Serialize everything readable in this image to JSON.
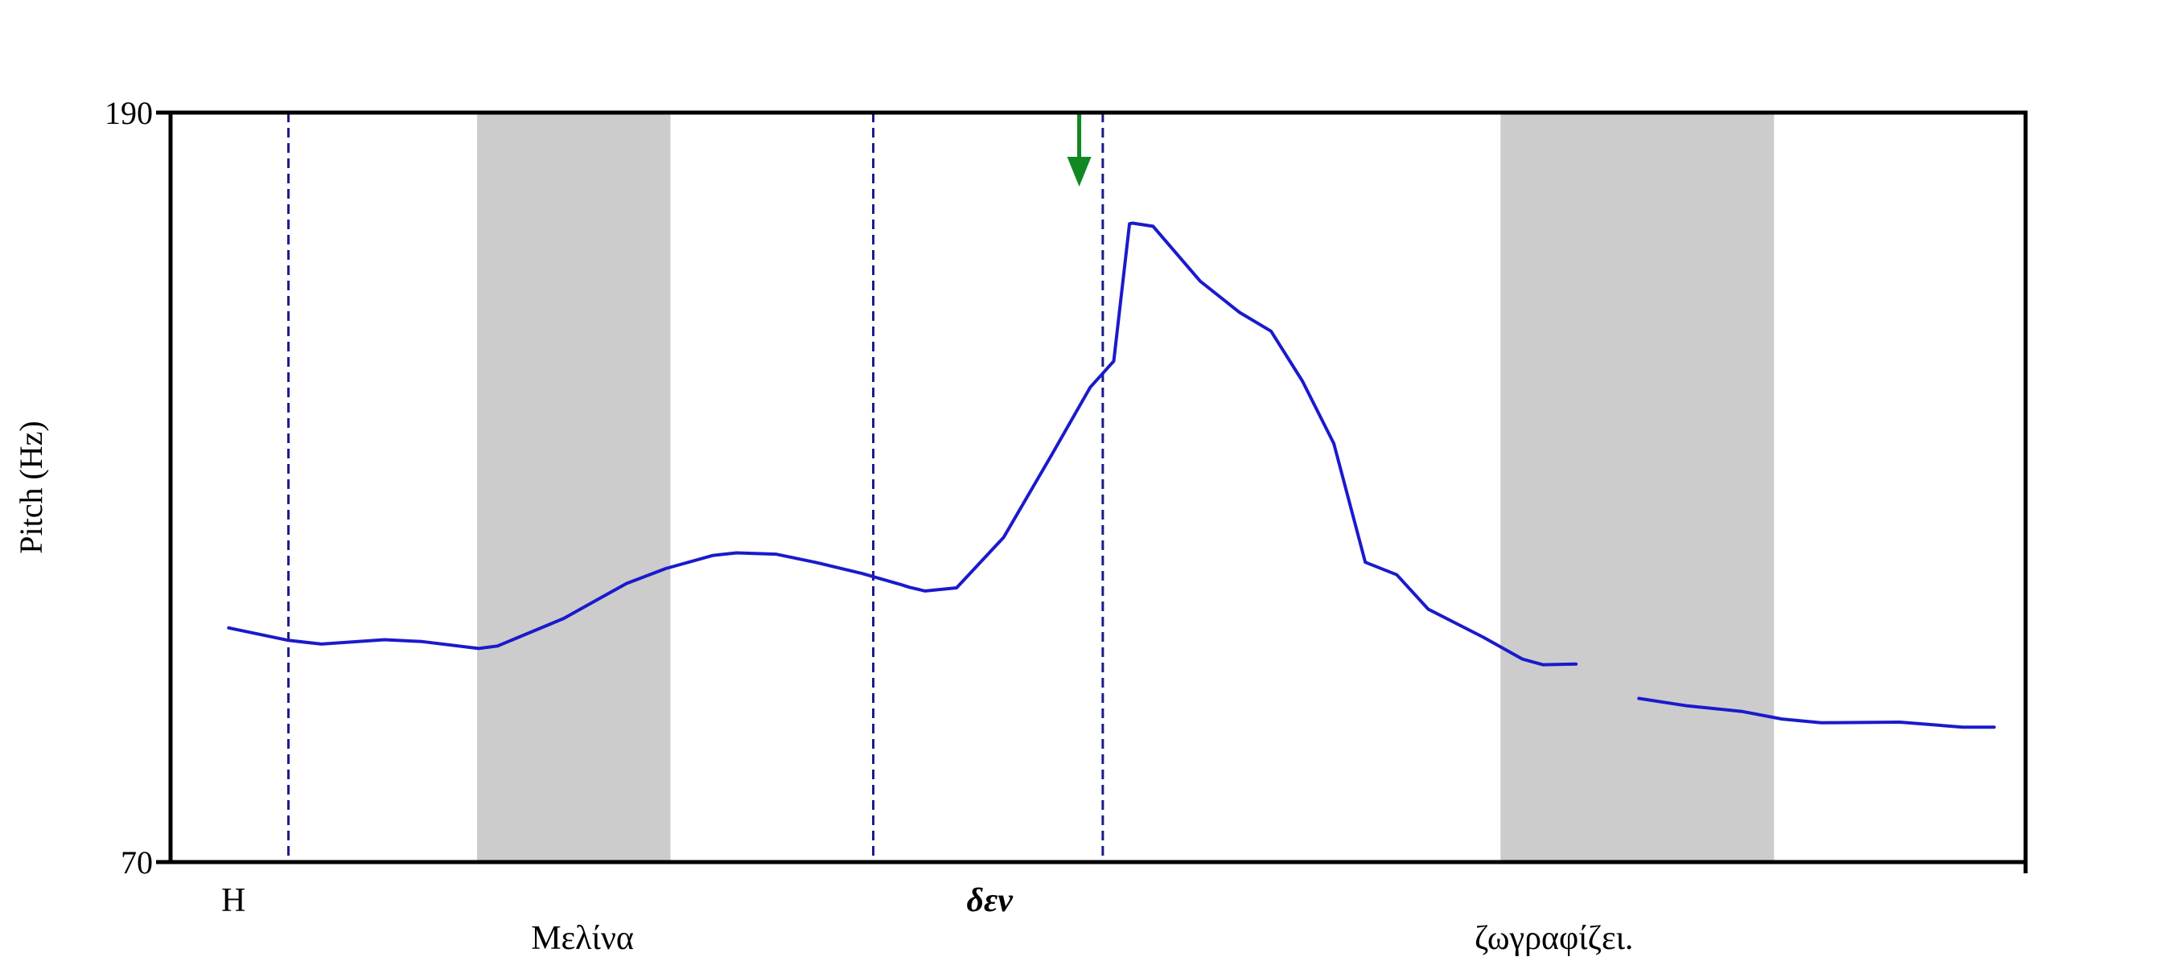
{
  "chart_data": {
    "type": "line",
    "ylabel": "Pitch (Hz)",
    "ylim": [
      70,
      190
    ],
    "xlim": [
      0,
      1.18
    ],
    "yticks": [
      70,
      190
    ],
    "grid": false,
    "series": [
      {
        "points": [
          [
            0.037,
            107.5
          ],
          [
            0.075,
            105.5
          ],
          [
            0.096,
            104.9
          ],
          [
            0.136,
            105.6
          ],
          [
            0.16,
            105.3
          ],
          [
            0.196,
            104.2
          ],
          [
            0.208,
            104.6
          ],
          [
            0.25,
            109.0
          ],
          [
            0.29,
            114.6
          ],
          [
            0.315,
            117.0
          ],
          [
            0.345,
            119.1
          ],
          [
            0.36,
            119.5
          ],
          [
            0.385,
            119.3
          ],
          [
            0.41,
            118.0
          ],
          [
            0.44,
            116.2
          ],
          [
            0.465,
            114.4
          ],
          [
            0.47,
            114.0
          ],
          [
            0.48,
            113.4
          ],
          [
            0.5,
            113.9
          ],
          [
            0.53,
            122.0
          ],
          [
            0.56,
            135.0
          ],
          [
            0.585,
            146.0
          ],
          [
            0.6,
            150.2
          ],
          [
            0.61,
            172.2
          ],
          [
            0.612,
            172.3
          ],
          [
            0.625,
            171.8
          ],
          [
            0.655,
            163.0
          ],
          [
            0.68,
            158.0
          ],
          [
            0.7,
            155.0
          ],
          [
            0.72,
            147.0
          ],
          [
            0.74,
            137.0
          ],
          [
            0.76,
            118.0
          ],
          [
            0.78,
            116.0
          ],
          [
            0.8,
            110.5
          ],
          [
            0.835,
            106.0
          ],
          [
            0.86,
            102.5
          ],
          [
            0.873,
            101.6
          ],
          [
            0.894,
            101.7
          ]
        ]
      },
      {
        "points": [
          [
            0.934,
            96.2
          ],
          [
            0.965,
            95.0
          ],
          [
            1.0,
            94.1
          ],
          [
            1.025,
            92.9
          ],
          [
            1.05,
            92.3
          ],
          [
            1.1,
            92.4
          ],
          [
            1.14,
            91.6
          ],
          [
            1.16,
            91.6
          ]
        ]
      }
    ],
    "shaded_regions": [
      [
        0.195,
        0.318
      ],
      [
        0.846,
        1.02
      ]
    ],
    "boundaries": [
      0.075,
      0.447,
      0.593
    ],
    "marker": {
      "x": 0.578,
      "label": ""
    },
    "words": [
      {
        "text": "Η",
        "x": 0.04,
        "row": 1,
        "emphasis": false
      },
      {
        "text": "Μελίνα",
        "x": 0.262,
        "row": 2,
        "emphasis": false
      },
      {
        "text": "δεν",
        "x": 0.521,
        "row": 1,
        "emphasis": true
      },
      {
        "text": "ζωγραφίζει.",
        "x": 0.88,
        "row": 2,
        "emphasis": false
      }
    ],
    "colors": {
      "line": "#1a1acc",
      "boundary": "#1a1a8c",
      "shade": "#cccccc",
      "arrow": "#118822",
      "axis": "#000000"
    }
  }
}
